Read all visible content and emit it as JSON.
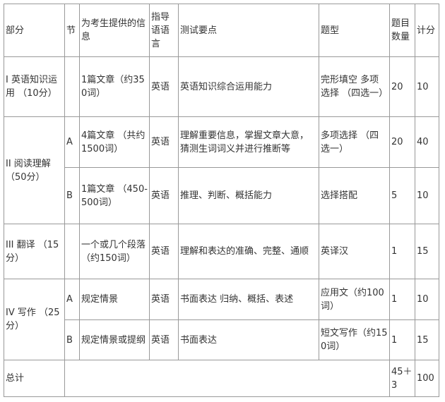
{
  "headers": [
    "部分",
    "节",
    "为考生提供的信息",
    "指导语语言",
    "测试要点",
    "题型",
    "题目数量",
    "计分"
  ],
  "rows": {
    "r1": {
      "part": "I 英语知识运用 （10分）",
      "section": "",
      "info": "1篇文章（约350词）",
      "lang": "英语",
      "points": "英语知识综合运用能力",
      "type": "完形填空 多项选择 （四选一）",
      "count": "20",
      "score": "10"
    },
    "r2a": {
      "part": "II 阅读理解 （50分）",
      "section": "A",
      "info": "4篇文章 （共约 1500词）",
      "lang": "英语",
      "points": "理解重要信息，掌握文章大意，猜测生词词义并进行推断等",
      "type": "多项选择 （四选一）",
      "count": "20",
      "score": "40"
    },
    "r2b": {
      "section": "B",
      "info": "1篇文章 （450-500词）",
      "lang": "英语",
      "points": "推理、判断、概括能力",
      "type": "选择搭配",
      "count": "5",
      "score": "10"
    },
    "r3": {
      "part": "III 翻译 （15分）",
      "section": "",
      "info": "一个或几个段落 （约150词）",
      "lang": "英语",
      "points": "理解和表达的准确、完整、通顺",
      "type": "英译汉",
      "count": "1",
      "score": "15"
    },
    "r4a": {
      "part": "IV 写作 （25分）",
      "section": "A",
      "info": "规定情景",
      "lang": "英语",
      "points": "书面表达 归纳、概括、表述",
      "type": "应用文（约100词）",
      "count": "1",
      "score": "10"
    },
    "r4b": {
      "section": "B",
      "info": "规定情景或提纲",
      "lang": "英语",
      "points": "书面表达",
      "type": "短文写作（约150词）",
      "count": "1",
      "score": "15"
    },
    "total": {
      "label": "总计",
      "count": "45＋3",
      "score": "100"
    }
  }
}
